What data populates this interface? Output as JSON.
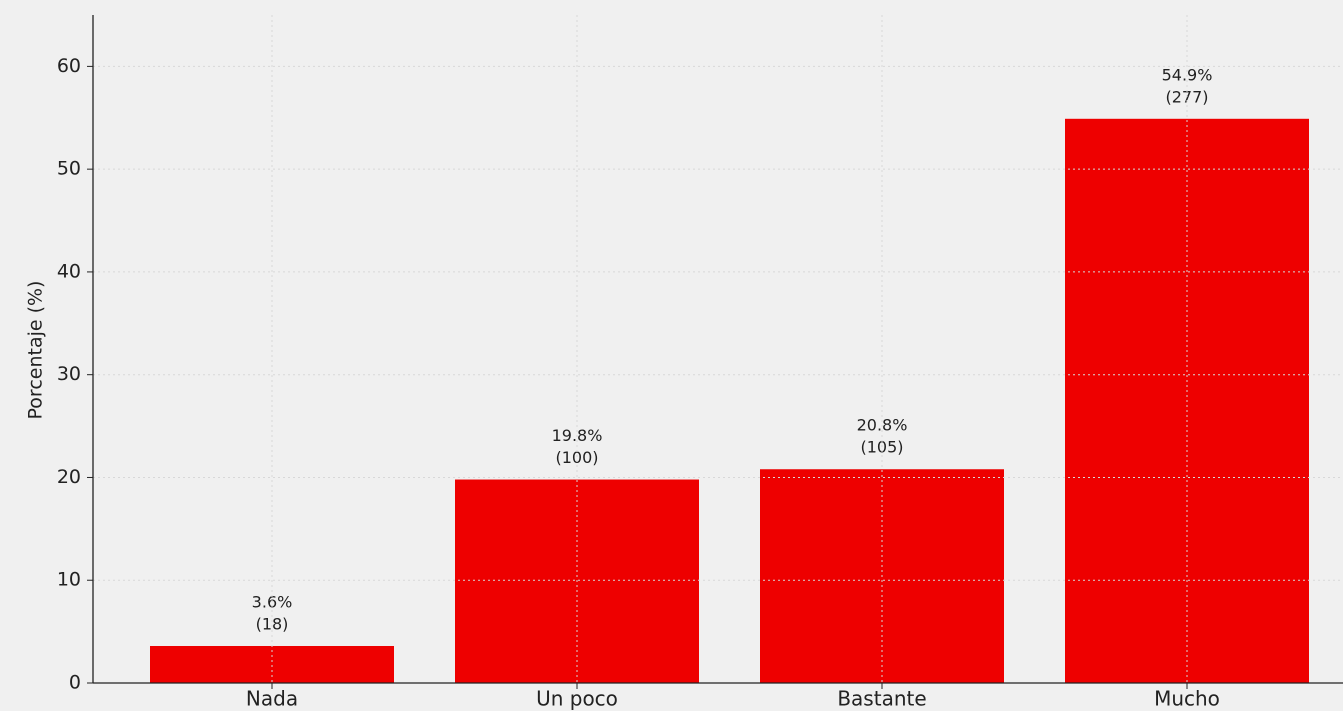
{
  "chart_data": {
    "type": "bar",
    "y_label": "Porcentaje (%)",
    "categories": [
      "Nada",
      "Un poco",
      "Bastante",
      "Mucho"
    ],
    "values": [
      3.6,
      19.8,
      20.8,
      54.9
    ],
    "value_labels": [
      "3.6%",
      "19.8%",
      "20.8%",
      "54.9%"
    ],
    "count_labels": [
      "(18)",
      "(100)",
      "(105)",
      "(277)"
    ],
    "color": "#ee0000",
    "ylim": [
      0,
      65
    ],
    "yticks": [
      0,
      10,
      20,
      30,
      40,
      50,
      60
    ],
    "grid": true
  }
}
